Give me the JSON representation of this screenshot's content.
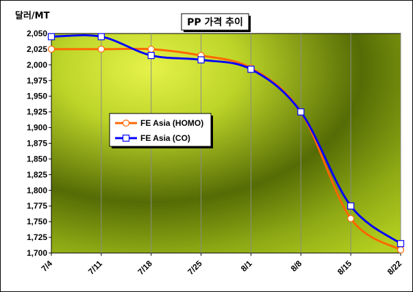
{
  "chart_data": {
    "type": "line",
    "title": "PP 가격 추이",
    "ylabel": "달러/MT",
    "xlabel": "",
    "categories": [
      "7/4",
      "7/11",
      "7/18",
      "7/25",
      "8/1",
      "8/8",
      "8/15",
      "8/22"
    ],
    "ylim": [
      1700,
      2050
    ],
    "ytick_step": 25,
    "ytick_labels": [
      "1,700",
      "1,725",
      "1,750",
      "1,775",
      "1,800",
      "1,825",
      "1,850",
      "1,875",
      "1,900",
      "1,925",
      "1,950",
      "1,975",
      "2,000",
      "2,025",
      "2,050"
    ],
    "grid": "vertical",
    "legend_position": "left-middle",
    "series": [
      {
        "name": "FE Asia (HOMO)",
        "color": "#ff6600",
        "marker": "circle",
        "values": [
          2025,
          2025,
          2025,
          2015,
          1995,
          1925,
          1755,
          1705
        ]
      },
      {
        "name": "FE Asia (CO)",
        "color": "#0000ff",
        "marker": "square",
        "values": [
          2045,
          2045,
          2015,
          2008,
          1993,
          1925,
          1775,
          1715
        ]
      }
    ]
  }
}
